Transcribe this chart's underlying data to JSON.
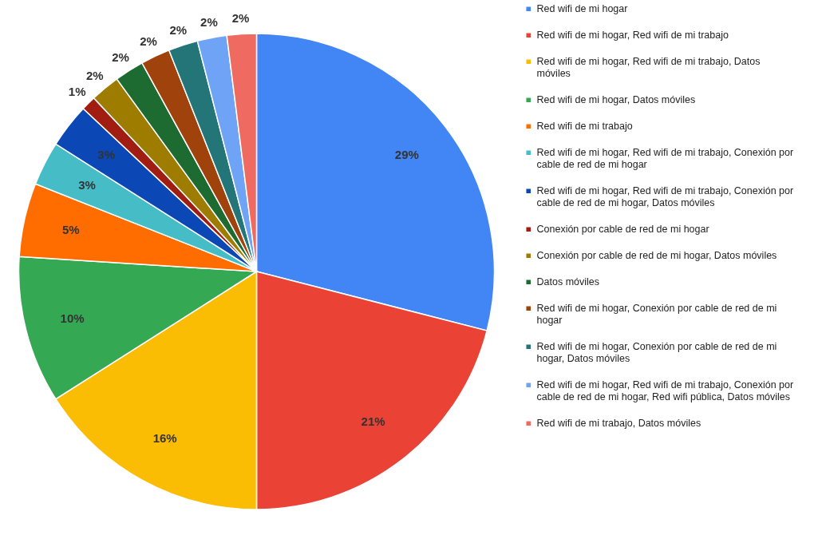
{
  "chart_data": {
    "type": "pie",
    "categories": [
      "Red wifi de mi hogar",
      "Red wifi de mi hogar, Red wifi de mi trabajo",
      "Red wifi de mi hogar, Red wifi de mi trabajo, Datos móviles",
      "Red wifi de mi hogar, Datos móviles",
      "Red wifi de mi trabajo",
      "Red wifi de mi hogar, Red wifi de mi trabajo, Conexión por cable de red de mi hogar",
      "Red wifi de mi hogar, Red wifi de mi trabajo, Conexión por cable de red de mi hogar, Datos móviles",
      "Conexión por cable de red de mi hogar",
      "Conexión por cable de red de mi hogar, Datos móviles",
      "Datos móviles",
      "Red wifi de mi hogar, Conexión por cable de red de mi hogar",
      "Red wifi de mi hogar, Conexión por cable de red de mi hogar, Datos móviles",
      "Red wifi de mi hogar, Red wifi de mi trabajo, Conexión por cable de red de mi hogar, Red wifi pública, Datos móviles",
      "Red wifi de mi trabajo, Datos móviles"
    ],
    "values": [
      29,
      21,
      16,
      10,
      5,
      3,
      3,
      1,
      2,
      2,
      2,
      2,
      2,
      2
    ],
    "value_labels": [
      "29%",
      "21%",
      "16%",
      "10%",
      "5%",
      "3%",
      "3%",
      "1%",
      "2%",
      "2%",
      "2%",
      "2%",
      "2%",
      "2%"
    ],
    "colors": [
      "#4285f4",
      "#ea4335",
      "#fbbc04",
      "#34a853",
      "#ff6d01",
      "#46bdc6",
      "#0b47b5",
      "#a11d12",
      "#9e7c00",
      "#1e6b31",
      "#a0420c",
      "#237578",
      "#6fa3f5",
      "#ef6a61"
    ],
    "legend": "right"
  }
}
